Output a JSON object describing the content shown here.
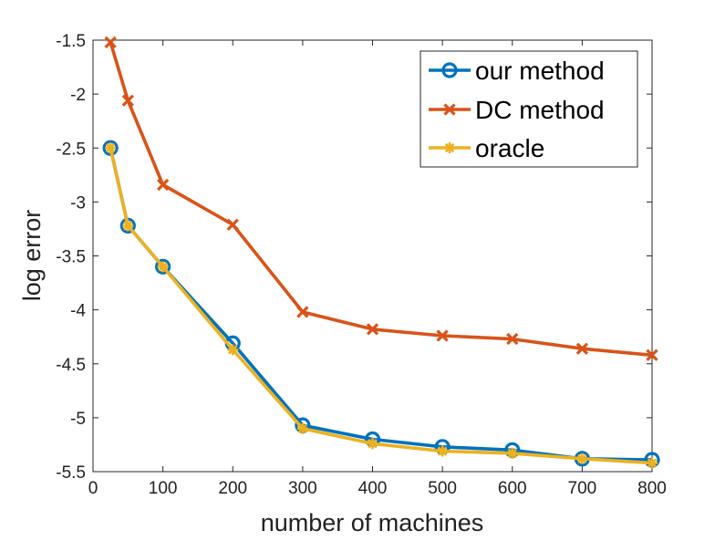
{
  "chart_data": {
    "type": "line",
    "title": "",
    "xlabel": "number of machines",
    "ylabel": "log error",
    "xlim": [
      0,
      800
    ],
    "ylim": [
      -5.5,
      -1.5
    ],
    "xticks": [
      0,
      100,
      200,
      300,
      400,
      500,
      600,
      700,
      800
    ],
    "yticks": [
      -1.5,
      -2,
      -2.5,
      -3,
      -3.5,
      -4,
      -4.5,
      -5,
      -5.5
    ],
    "xtick_labels": [
      "0",
      "100",
      "200",
      "300",
      "400",
      "500",
      "600",
      "700",
      "800"
    ],
    "ytick_labels": [
      "-1.5",
      "-2",
      "-2.5",
      "-3",
      "-3.5",
      "-4",
      "-4.5",
      "-5",
      "-5.5"
    ],
    "grid": false,
    "legend_position": "top-right",
    "x": [
      25,
      50,
      100,
      200,
      300,
      400,
      500,
      600,
      700,
      800
    ],
    "series": [
      {
        "name": "our method",
        "marker": "circle",
        "color": "#0072BD",
        "values": [
          -2.5,
          -3.22,
          -3.6,
          -4.31,
          -5.07,
          -5.2,
          -5.27,
          -5.3,
          -5.38,
          -5.39
        ]
      },
      {
        "name": "DC method",
        "marker": "x",
        "color": "#D95319",
        "values": [
          -1.52,
          -2.06,
          -2.84,
          -3.21,
          -4.02,
          -4.18,
          -4.24,
          -4.27,
          -4.36,
          -4.42
        ]
      },
      {
        "name": "oracle",
        "marker": "star",
        "color": "#EDB120",
        "values": [
          -2.5,
          -3.22,
          -3.6,
          -4.37,
          -5.1,
          -5.24,
          -5.31,
          -5.33,
          -5.38,
          -5.42
        ]
      }
    ]
  }
}
